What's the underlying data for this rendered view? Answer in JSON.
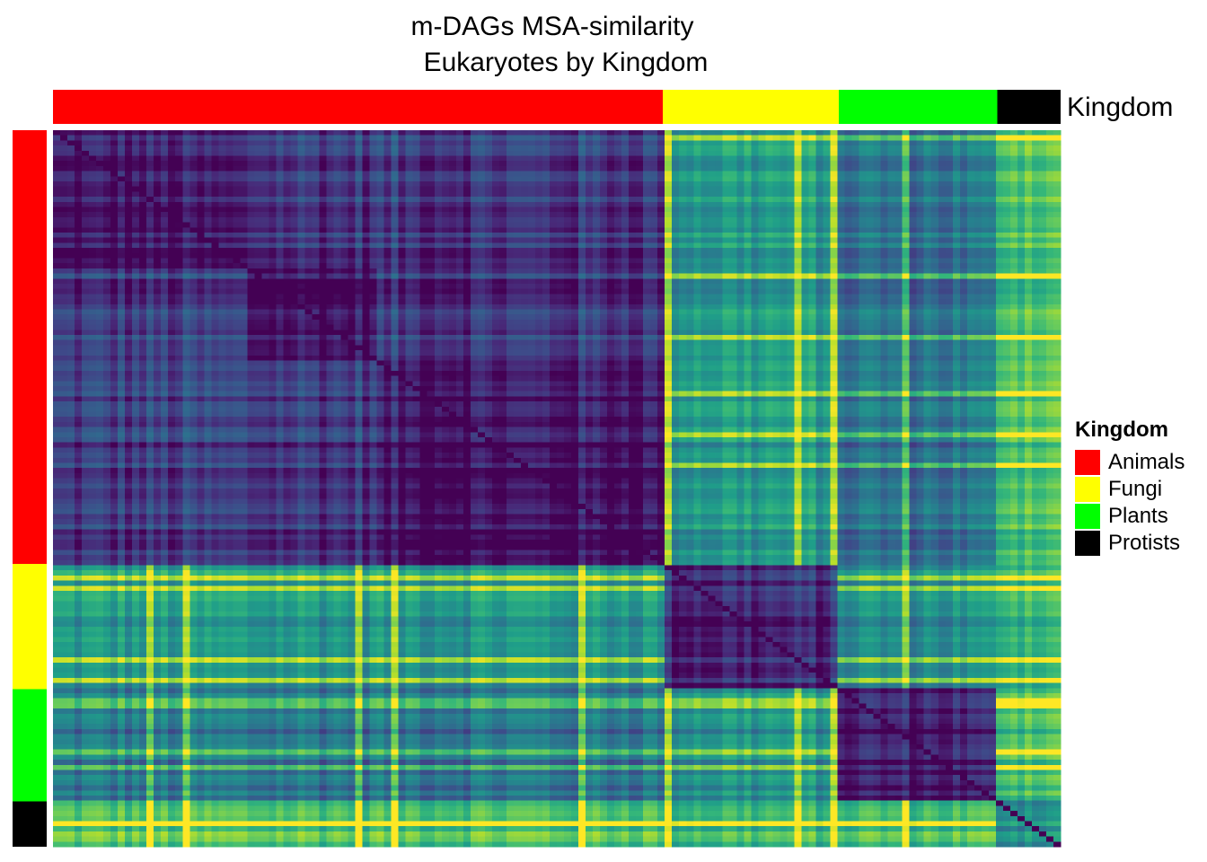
{
  "chart_data": {
    "type": "heatmap",
    "title": "m-DAGs MSA-similarity",
    "subtitle": "Eukaryotes by Kingdom",
    "annotation_label": "Kingdom",
    "legend": {
      "title": "Kingdom",
      "placement": "right",
      "entries": [
        {
          "label": "Animals",
          "color": "#ff0000"
        },
        {
          "label": "Fungi",
          "color": "#ffff00"
        },
        {
          "label": "Plants",
          "color": "#00ff00"
        },
        {
          "label": "Protists",
          "color": "#000000"
        }
      ]
    },
    "kingdom_fractions": [
      {
        "kingdom": "Animals",
        "fraction": 0.605
      },
      {
        "kingdom": "Fungi",
        "fraction": 0.175
      },
      {
        "kingdom": "Plants",
        "fraction": 0.157
      },
      {
        "kingdom": "Protists",
        "fraction": 0.063
      }
    ],
    "color_scale": "viridis",
    "grid": false
  }
}
